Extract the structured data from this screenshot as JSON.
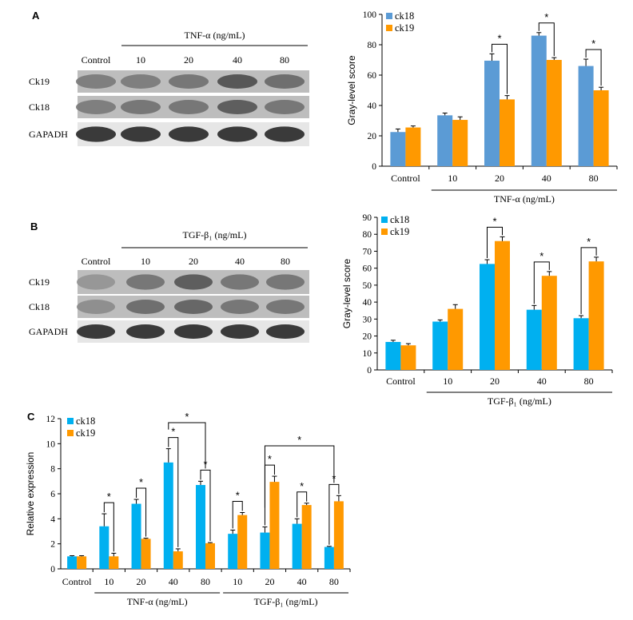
{
  "panels": {
    "A": {
      "letter": "A",
      "blot": {
        "treatment_label": "TNF-α (ng/mL)",
        "lanes": [
          "Control",
          "10",
          "20",
          "40",
          "80"
        ],
        "rows": [
          {
            "label": "Ck19",
            "intensity": [
              0.45,
              0.45,
              0.5,
              0.7,
              0.55
            ]
          },
          {
            "label": "Ck18",
            "intensity": [
              0.45,
              0.5,
              0.5,
              0.65,
              0.5
            ]
          },
          {
            "label": "GAPADH",
            "intensity": [
              0.9,
              0.9,
              0.9,
              0.9,
              0.9
            ]
          }
        ]
      }
    },
    "B": {
      "letter": "B",
      "blot": {
        "treatment_label": "TGF-β₁ (ng/mL)",
        "lanes": [
          "Control",
          "10",
          "20",
          "40",
          "80"
        ],
        "rows": [
          {
            "label": "Ck19",
            "intensity": [
              0.3,
              0.5,
              0.65,
              0.5,
              0.5
            ]
          },
          {
            "label": "Ck18",
            "intensity": [
              0.35,
              0.55,
              0.6,
              0.5,
              0.5
            ]
          },
          {
            "label": "GAPADH",
            "intensity": [
              0.9,
              0.9,
              0.9,
              0.9,
              0.9
            ]
          }
        ]
      }
    },
    "C": {
      "letter": "C"
    }
  },
  "chart_data": [
    {
      "type": "bar",
      "id": "A-chart",
      "categories": [
        "Control",
        "10",
        "20",
        "40",
        "80"
      ],
      "group_label": "TNF-α (ng/mL)",
      "ylabel": "Gray-level score",
      "ylim": [
        0,
        100
      ],
      "yticks": [
        0,
        20,
        40,
        60,
        80,
        100
      ],
      "legend_position": "top-left",
      "series": [
        {
          "name": "ck18",
          "color": "#5b9bd5",
          "values": [
            22.5,
            33.5,
            69.5,
            86,
            66
          ],
          "errors": [
            2,
            1.5,
            4.5,
            2,
            4.5
          ]
        },
        {
          "name": "ck19",
          "color": "#ff9900",
          "values": [
            25.5,
            30.5,
            44,
            70,
            50
          ],
          "errors": [
            1,
            2,
            2.5,
            1.5,
            2
          ]
        }
      ],
      "significance": [
        {
          "category": 2,
          "label": "*"
        },
        {
          "category": 3,
          "label": "*"
        },
        {
          "category": 4,
          "label": "*"
        }
      ]
    },
    {
      "type": "bar",
      "id": "B-chart",
      "categories": [
        "Control",
        "10",
        "20",
        "40",
        "80"
      ],
      "group_label": "TGF-β₁ (ng/mL)",
      "ylabel": "Gray-level score",
      "ylim": [
        0,
        90
      ],
      "yticks": [
        0,
        10,
        20,
        30,
        40,
        50,
        60,
        70,
        80,
        90
      ],
      "legend_position": "top-left",
      "series": [
        {
          "name": "ck18",
          "color": "#00b0f0",
          "values": [
            16.5,
            28.5,
            62.5,
            35.5,
            30.5
          ],
          "errors": [
            1,
            1,
            2.5,
            2.5,
            1.5
          ]
        },
        {
          "name": "ck19",
          "color": "#ff9900",
          "values": [
            14.5,
            36,
            76,
            55.5,
            64
          ],
          "errors": [
            1,
            2.5,
            2.5,
            2.5,
            2.5
          ]
        }
      ],
      "significance": [
        {
          "category": 2,
          "label": "*"
        },
        {
          "category": 3,
          "label": "*"
        },
        {
          "category": 4,
          "label": "*"
        }
      ]
    },
    {
      "type": "bar",
      "id": "C-chart",
      "categories": [
        "Control",
        "10",
        "20",
        "40",
        "80",
        "10",
        "20",
        "40",
        "80"
      ],
      "groups": [
        {
          "label": "TNF-α (ng/mL)",
          "from": 1,
          "to": 4
        },
        {
          "label": "TGF-β₁ (ng/mL)",
          "from": 5,
          "to": 8
        }
      ],
      "ylabel": "Relative expression",
      "ylim": [
        0,
        12
      ],
      "yticks": [
        0,
        2,
        4,
        6,
        8,
        10,
        12
      ],
      "legend_position": "top-left",
      "series": [
        {
          "name": "ck18",
          "color": "#00b0f0",
          "values": [
            1.0,
            3.4,
            5.2,
            8.5,
            6.7,
            2.8,
            2.9,
            3.6,
            1.75
          ],
          "errors": [
            0.05,
            1.0,
            0.35,
            1.1,
            0.3,
            0.3,
            0.45,
            0.4,
            0.05
          ]
        },
        {
          "name": "ck19",
          "color": "#ff9900",
          "values": [
            1.0,
            1.0,
            2.4,
            1.4,
            2.05,
            4.3,
            6.95,
            5.1,
            5.4
          ],
          "errors": [
            0.05,
            0.25,
            0.05,
            0.2,
            0.05,
            0.2,
            0.45,
            0.15,
            0.45
          ]
        }
      ],
      "significance": [
        {
          "category": 1,
          "label": "*"
        },
        {
          "category": 2,
          "label": "*"
        },
        {
          "category": 3,
          "label": "*"
        },
        {
          "category": 4,
          "label": "*"
        },
        {
          "category": 5,
          "label": "*"
        },
        {
          "category": 6,
          "label": "*"
        },
        {
          "category": 7,
          "label": "*"
        },
        {
          "category": 8,
          "label": "*"
        }
      ],
      "long_brackets": [
        {
          "from_category": 3,
          "to_category": 4,
          "label": "*"
        },
        {
          "from_category": 6,
          "to_category": 8,
          "label": "*"
        }
      ]
    }
  ]
}
